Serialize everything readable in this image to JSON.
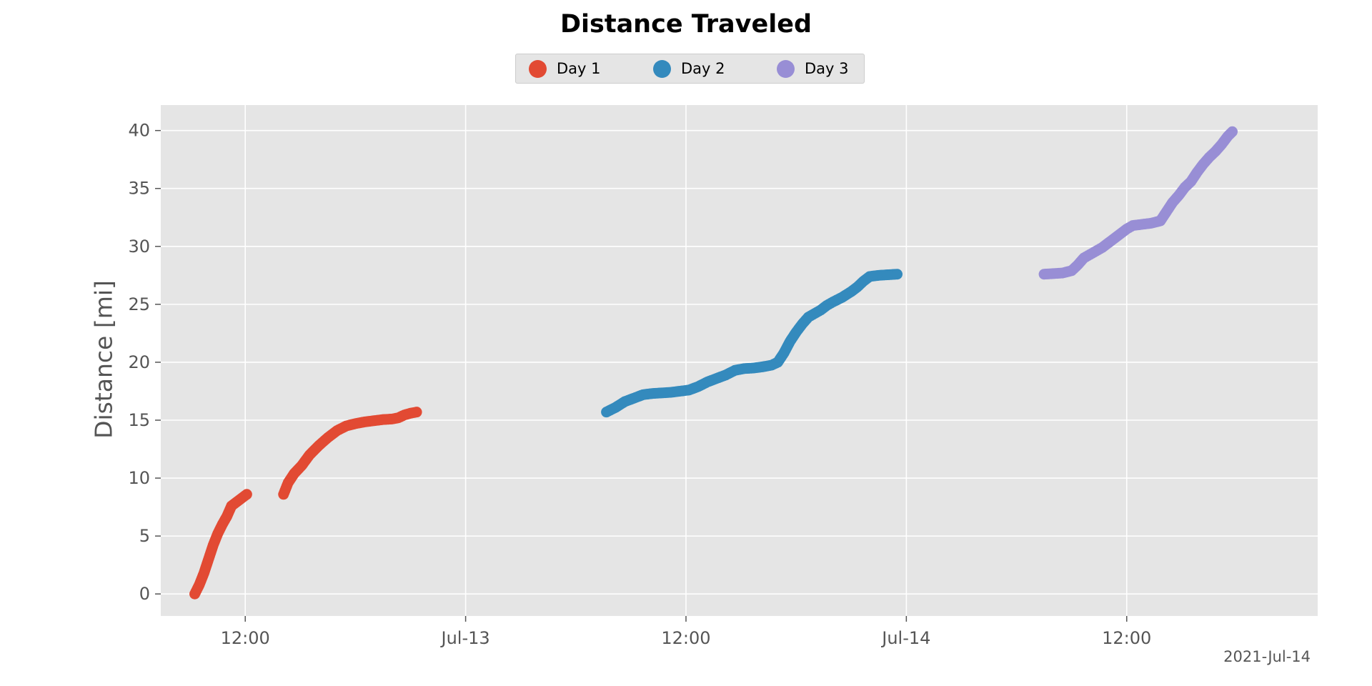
{
  "chart_data": {
    "type": "scatter",
    "title": "Distance Traveled",
    "xlabel": "",
    "ylabel": "Distance [mi]",
    "x_axis_type": "datetime",
    "x_offset_label": "2021-Jul-14",
    "xlim": [
      "2021-07-12 07:24",
      "2021-07-14 22:24"
    ],
    "ylim": [
      -1.9,
      42.2
    ],
    "xticks": [
      {
        "value": "2021-07-12 12:00",
        "label": "12:00"
      },
      {
        "value": "2021-07-13 00:00",
        "label": "Jul-13"
      },
      {
        "value": "2021-07-13 12:00",
        "label": "12:00"
      },
      {
        "value": "2021-07-14 00:00",
        "label": "Jul-14"
      },
      {
        "value": "2021-07-14 12:00",
        "label": "12:00"
      }
    ],
    "yticks": [
      0,
      5,
      10,
      15,
      20,
      25,
      30,
      35,
      40
    ],
    "grid": true,
    "legend_position": "top-center",
    "style": "ggplot",
    "series": [
      {
        "name": "Day 1",
        "color": "#E24A33",
        "points": [
          [
            "2021-07-12 09:15",
            0.0
          ],
          [
            "2021-07-12 09:30",
            0.8
          ],
          [
            "2021-07-12 09:45",
            1.8
          ],
          [
            "2021-07-12 10:00",
            3.0
          ],
          [
            "2021-07-12 10:15",
            4.2
          ],
          [
            "2021-07-12 10:30",
            5.2
          ],
          [
            "2021-07-12 10:45",
            6.0
          ],
          [
            "2021-07-12 11:00",
            6.7
          ],
          [
            "2021-07-12 11:15",
            7.6
          ],
          [
            "2021-07-12 11:30",
            7.9
          ],
          [
            "2021-07-12 11:45",
            8.2
          ],
          [
            "2021-07-12 12:05",
            8.6
          ],
          null,
          [
            "2021-07-12 14:05",
            8.6
          ],
          [
            "2021-07-12 14:20",
            9.6
          ],
          [
            "2021-07-12 14:40",
            10.4
          ],
          [
            "2021-07-12 15:05",
            11.1
          ],
          [
            "2021-07-12 15:30",
            12.0
          ],
          [
            "2021-07-12 16:00",
            12.8
          ],
          [
            "2021-07-12 16:30",
            13.5
          ],
          [
            "2021-07-12 17:00",
            14.1
          ],
          [
            "2021-07-12 17:30",
            14.5
          ],
          [
            "2021-07-12 18:00",
            14.7
          ],
          [
            "2021-07-12 18:30",
            14.85
          ],
          [
            "2021-07-12 19:00",
            14.95
          ],
          [
            "2021-07-12 19:30",
            15.05
          ],
          [
            "2021-07-12 20:00",
            15.1
          ],
          [
            "2021-07-12 20:20",
            15.2
          ],
          [
            "2021-07-12 20:40",
            15.45
          ],
          [
            "2021-07-12 21:00",
            15.6
          ],
          [
            "2021-07-12 21:20",
            15.7
          ]
        ]
      },
      {
        "name": "Day 2",
        "color": "#348ABD",
        "points": [
          [
            "2021-07-13 07:40",
            15.7
          ],
          [
            "2021-07-13 08:10",
            16.1
          ],
          [
            "2021-07-13 08:40",
            16.6
          ],
          [
            "2021-07-13 09:10",
            16.9
          ],
          [
            "2021-07-13 09:40",
            17.2
          ],
          [
            "2021-07-13 10:10",
            17.3
          ],
          [
            "2021-07-13 10:40",
            17.35
          ],
          [
            "2021-07-13 11:10",
            17.4
          ],
          [
            "2021-07-13 11:40",
            17.5
          ],
          [
            "2021-07-13 12:10",
            17.6
          ],
          [
            "2021-07-13 12:40",
            17.9
          ],
          [
            "2021-07-13 13:10",
            18.3
          ],
          [
            "2021-07-13 13:40",
            18.6
          ],
          [
            "2021-07-13 14:10",
            18.9
          ],
          [
            "2021-07-13 14:40",
            19.3
          ],
          [
            "2021-07-13 15:10",
            19.45
          ],
          [
            "2021-07-13 15:40",
            19.5
          ],
          [
            "2021-07-13 16:10",
            19.6
          ],
          [
            "2021-07-13 16:40",
            19.75
          ],
          [
            "2021-07-13 17:00",
            20.0
          ],
          [
            "2021-07-13 17:20",
            20.8
          ],
          [
            "2021-07-13 17:40",
            21.8
          ],
          [
            "2021-07-13 18:00",
            22.6
          ],
          [
            "2021-07-13 18:20",
            23.3
          ],
          [
            "2021-07-13 18:40",
            23.9
          ],
          [
            "2021-07-13 19:00",
            24.2
          ],
          [
            "2021-07-13 19:20",
            24.5
          ],
          [
            "2021-07-13 19:40",
            24.9
          ],
          [
            "2021-07-13 20:00",
            25.2
          ],
          [
            "2021-07-13 20:30",
            25.6
          ],
          [
            "2021-07-13 21:00",
            26.1
          ],
          [
            "2021-07-13 21:20",
            26.5
          ],
          [
            "2021-07-13 21:40",
            27.0
          ],
          [
            "2021-07-13 22:00",
            27.4
          ],
          [
            "2021-07-13 22:30",
            27.5
          ],
          [
            "2021-07-13 23:00",
            27.55
          ],
          [
            "2021-07-13 23:30",
            27.6
          ]
        ]
      },
      {
        "name": "Day 3",
        "color": "#988ED5",
        "points": [
          [
            "2021-07-14 07:30",
            27.6
          ],
          [
            "2021-07-14 08:00",
            27.65
          ],
          [
            "2021-07-14 08:30",
            27.7
          ],
          [
            "2021-07-14 09:00",
            27.9
          ],
          [
            "2021-07-14 09:20",
            28.4
          ],
          [
            "2021-07-14 09:40",
            29.0
          ],
          [
            "2021-07-14 10:00",
            29.3
          ],
          [
            "2021-07-14 10:20",
            29.6
          ],
          [
            "2021-07-14 10:40",
            29.9
          ],
          [
            "2021-07-14 11:00",
            30.3
          ],
          [
            "2021-07-14 11:20",
            30.7
          ],
          [
            "2021-07-14 11:40",
            31.1
          ],
          [
            "2021-07-14 12:00",
            31.5
          ],
          [
            "2021-07-14 12:20",
            31.8
          ],
          [
            "2021-07-14 12:50",
            31.9
          ],
          [
            "2021-07-14 13:20",
            32.0
          ],
          [
            "2021-07-14 13:50",
            32.2
          ],
          [
            "2021-07-14 14:10",
            33.0
          ],
          [
            "2021-07-14 14:30",
            33.8
          ],
          [
            "2021-07-14 14:50",
            34.4
          ],
          [
            "2021-07-14 15:10",
            35.1
          ],
          [
            "2021-07-14 15:30",
            35.6
          ],
          [
            "2021-07-14 15:50",
            36.4
          ],
          [
            "2021-07-14 16:10",
            37.1
          ],
          [
            "2021-07-14 16:30",
            37.7
          ],
          [
            "2021-07-14 16:50",
            38.2
          ],
          [
            "2021-07-14 17:10",
            38.8
          ],
          [
            "2021-07-14 17:30",
            39.5
          ],
          [
            "2021-07-14 17:45",
            39.9
          ]
        ]
      }
    ]
  }
}
